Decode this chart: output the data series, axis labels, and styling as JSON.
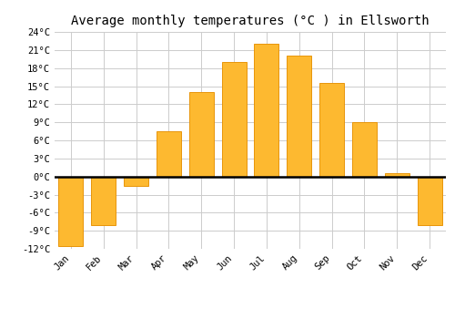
{
  "title": "Average monthly temperatures (°C ) in Ellsworth",
  "months": [
    "Jan",
    "Feb",
    "Mar",
    "Apr",
    "May",
    "Jun",
    "Jul",
    "Aug",
    "Sep",
    "Oct",
    "Nov",
    "Dec"
  ],
  "values": [
    -11.5,
    -8.0,
    -1.5,
    7.5,
    14.0,
    19.0,
    22.0,
    20.0,
    15.5,
    9.0,
    0.5,
    -8.0
  ],
  "bar_color": "#FDB930",
  "bar_edge_color": "#E8950A",
  "ylim": [
    -12,
    24
  ],
  "yticks": [
    -12,
    -9,
    -6,
    -3,
    0,
    3,
    6,
    9,
    12,
    15,
    18,
    21,
    24
  ],
  "ytick_labels": [
    "-12°C",
    "-9°C",
    "-6°C",
    "-3°C",
    "0°C",
    "3°C",
    "6°C",
    "9°C",
    "12°C",
    "15°C",
    "18°C",
    "21°C",
    "24°C"
  ],
  "title_fontsize": 10,
  "tick_fontsize": 7.5,
  "background_color": "#ffffff",
  "grid_color": "#cccccc",
  "zero_line_color": "#000000"
}
